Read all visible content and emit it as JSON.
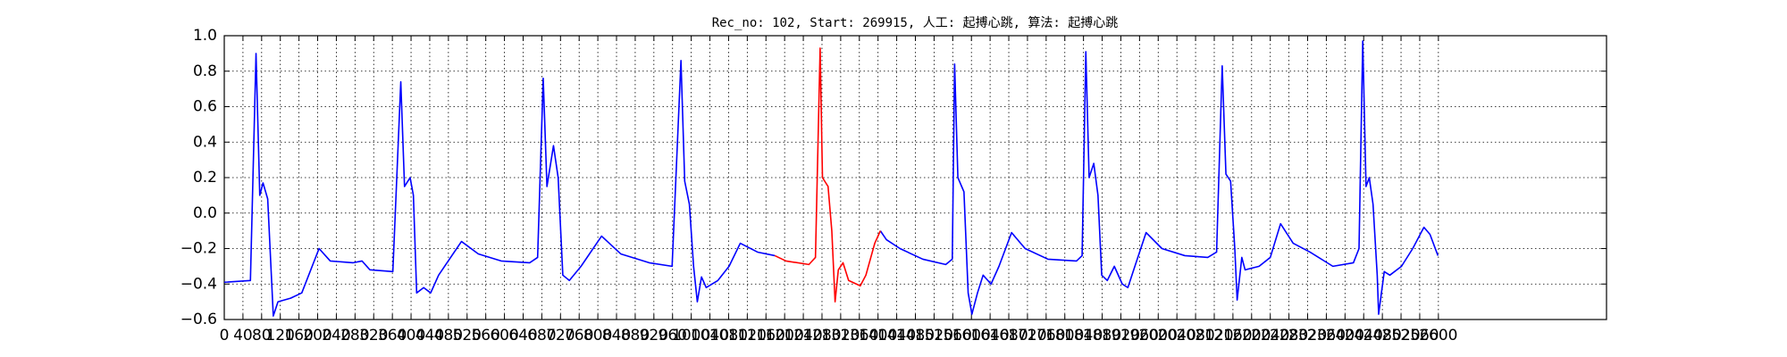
{
  "chart_data": {
    "type": "line",
    "title": "Rec_no: 102, Start: 269915, 人工: 起搏心跳, 算法: 起搏心跳",
    "x": [
      0,
      56,
      68,
      76,
      83,
      93,
      105,
      115,
      142,
      166,
      203,
      227,
      276,
      295,
      312,
      361,
      378,
      386,
      398,
      405,
      412,
      427,
      442,
      459,
      508,
      544,
      593,
      654,
      671,
      683,
      691,
      705,
      715,
      725,
      739,
      764,
      808,
      849,
      910,
      959,
      978,
      986,
      996,
      1005,
      1013,
      1022,
      1032,
      1057,
      1081,
      1105,
      1142,
      1179,
      1203,
      1252,
      1266,
      1276,
      1281,
      1293,
      1301,
      1308,
      1315,
      1325,
      1337,
      1362,
      1374,
      1393,
      1405,
      1418,
      1447,
      1496,
      1545,
      1559,
      1564,
      1571,
      1584,
      1593,
      1601,
      1613,
      1625,
      1642,
      1659,
      1686,
      1715,
      1764,
      1825,
      1837,
      1845,
      1852,
      1862,
      1871,
      1879,
      1891,
      1906,
      1923,
      1935,
      1950,
      1974,
      2008,
      2057,
      2106,
      2125,
      2137,
      2145,
      2155,
      2164,
      2169,
      2179,
      2186,
      2216,
      2240,
      2262,
      2289,
      2325,
      2374,
      2418,
      2430,
      2438,
      2445,
      2452,
      2460,
      2469,
      2472,
      2484,
      2496,
      2521,
      2545,
      2569,
      2582,
      2599
    ],
    "series": [
      {
        "color": "#0000ff",
        "values": [
          -0.39,
          -0.38,
          0.9,
          0.1,
          0.17,
          0.08,
          -0.58,
          -0.5,
          -0.48,
          -0.45,
          -0.2,
          -0.27,
          -0.28,
          -0.27,
          -0.32,
          -0.33,
          0.74,
          0.15,
          0.2,
          0.1,
          -0.45,
          -0.42,
          -0.45,
          -0.35,
          -0.16,
          -0.23,
          -0.27,
          -0.28,
          -0.25,
          0.76,
          0.15,
          0.38,
          0.2,
          -0.35,
          -0.38,
          -0.3,
          -0.13,
          -0.23,
          -0.28,
          -0.3,
          0.86,
          0.18,
          0.05,
          -0.3,
          -0.5,
          -0.36,
          -0.42,
          -0.38,
          -0.3,
          -0.17,
          -0.22,
          -0.24,
          null,
          null,
          null,
          null,
          null,
          null,
          null,
          null,
          null,
          null,
          null,
          null,
          null,
          null,
          -0.1,
          -0.15,
          -0.2,
          -0.26,
          -0.29,
          -0.26,
          0.84,
          0.2,
          0.12,
          -0.45,
          -0.57,
          -0.45,
          -0.35,
          -0.4,
          -0.3,
          -0.11,
          -0.2,
          -0.26,
          -0.27,
          -0.24,
          0.91,
          0.2,
          0.28,
          0.1,
          -0.35,
          -0.38,
          -0.3,
          -0.4,
          -0.42,
          -0.3,
          -0.11,
          -0.2,
          -0.24,
          -0.25,
          -0.22,
          0.83,
          0.22,
          0.18,
          -0.2,
          -0.49,
          -0.25,
          -0.32,
          -0.3,
          -0.25,
          -0.06,
          -0.17,
          -0.22,
          -0.3,
          -0.28,
          -0.2,
          0.97,
          0.15,
          0.2,
          0.05,
          -0.35,
          -0.57,
          -0.33,
          -0.35,
          -0.3,
          -0.2,
          -0.08,
          -0.12,
          -0.24
        ]
      },
      {
        "color": "#ff0000",
        "values": [
          null,
          null,
          null,
          null,
          null,
          null,
          null,
          null,
          null,
          null,
          null,
          null,
          null,
          null,
          null,
          null,
          null,
          null,
          null,
          null,
          null,
          null,
          null,
          null,
          null,
          null,
          null,
          null,
          null,
          null,
          null,
          null,
          null,
          null,
          null,
          null,
          null,
          null,
          null,
          null,
          null,
          null,
          null,
          null,
          null,
          null,
          null,
          null,
          null,
          null,
          null,
          -0.24,
          -0.27,
          -0.29,
          -0.25,
          0.93,
          0.2,
          0.15,
          -0.1,
          -0.5,
          -0.32,
          -0.28,
          -0.38,
          -0.41,
          -0.35,
          -0.17,
          -0.1,
          null,
          null,
          null,
          null,
          null,
          null,
          null,
          null,
          null,
          null,
          null,
          null,
          null,
          null,
          null,
          null,
          null,
          null,
          null,
          null,
          null,
          null,
          null,
          null,
          null,
          null,
          null,
          null,
          null,
          null,
          null,
          null,
          null,
          null,
          null,
          null,
          null,
          null,
          null,
          null,
          null,
          null,
          null,
          null,
          null,
          null,
          null,
          null,
          null,
          null,
          null,
          null,
          null,
          null,
          null,
          null,
          null,
          null,
          null,
          null,
          null,
          null
        ]
      }
    ],
    "xlim": [
      0,
      2960
    ],
    "xticks": [
      0,
      40,
      80,
      120,
      160,
      200,
      240,
      280,
      320,
      360,
      400,
      440,
      480,
      520,
      560,
      600,
      640,
      680,
      720,
      760,
      800,
      840,
      880,
      920,
      960,
      1000,
      1040,
      1080,
      1120,
      1160,
      1200,
      1240,
      1280,
      1320,
      1360,
      1400,
      1440,
      1480,
      1520,
      1560,
      1600,
      1640,
      1680,
      1720,
      1760,
      1800,
      1840,
      1880,
      1920,
      1960,
      2000,
      2040,
      2080,
      2120,
      2160,
      2200,
      2240,
      2280,
      2320,
      2360,
      2400,
      2440,
      2480,
      2520,
      2560,
      2600
    ],
    "ylim": [
      -0.6,
      1.0
    ],
    "yticks": [
      {
        "value": -0.6,
        "label": "−0.6"
      },
      {
        "value": -0.4,
        "label": "−0.4"
      },
      {
        "value": -0.2,
        "label": "−0.2"
      },
      {
        "value": 0,
        "label": "0.0"
      },
      0.2,
      0.4,
      0.6,
      0.8,
      {
        "value": 1.0,
        "label": "1.0"
      }
    ],
    "grid": true
  }
}
